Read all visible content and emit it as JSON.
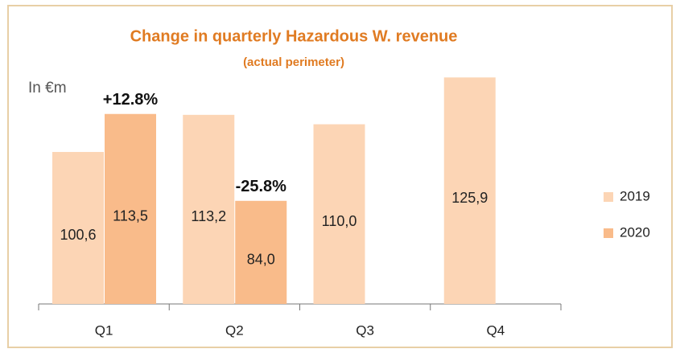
{
  "chart_data": {
    "type": "bar",
    "title": "Change in quarterly Hazardous W. revenue",
    "subtitle": "(actual perimeter)",
    "unit_label": "In €m",
    "categories": [
      "Q1",
      "Q2",
      "Q3",
      "Q4"
    ],
    "series": [
      {
        "name": "2019",
        "color": "#fcd5b5",
        "values": [
          100.6,
          113.2,
          110.0,
          125.9
        ],
        "value_labels": [
          "100,6",
          "113,2",
          "110,0",
          "125,9"
        ]
      },
      {
        "name": "2020",
        "color": "#f9bb8a",
        "values": [
          113.5,
          84.0,
          null,
          null
        ],
        "value_labels": [
          "113,5",
          "84,0",
          null,
          null
        ]
      }
    ],
    "annotations": [
      "+12.8%",
      "-25.8%"
    ],
    "ylim": [
      49,
      144
    ],
    "legend": "right"
  }
}
